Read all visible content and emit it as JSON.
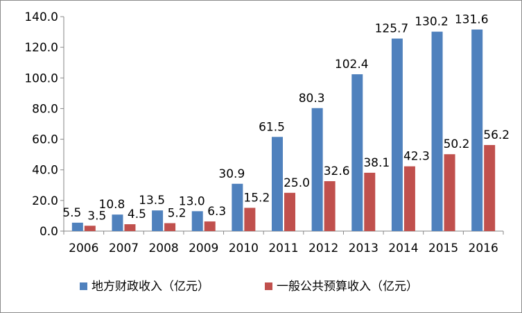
{
  "chart_data": {
    "type": "bar",
    "categories": [
      "2006",
      "2007",
      "2008",
      "2009",
      "2010",
      "2011",
      "2012",
      "2013",
      "2014",
      "2015",
      "2016"
    ],
    "series": [
      {
        "name": "地方财政收入（亿元）",
        "values": [
          5.5,
          10.8,
          13.5,
          13.0,
          30.9,
          61.5,
          80.3,
          102.4,
          125.7,
          130.2,
          131.6
        ],
        "labels": [
          "5.5",
          "10.8",
          "13.5",
          "13.0",
          "30.9",
          "61.5",
          "80.3",
          "102.4",
          "125.7",
          "130.2",
          "131.6"
        ],
        "color": "#4F81BD"
      },
      {
        "name": "一般公共预算收入（亿元）",
        "values": [
          3.5,
          4.5,
          5.2,
          6.3,
          15.2,
          25.0,
          32.6,
          38.1,
          42.3,
          50.2,
          56.2
        ],
        "labels": [
          "3.5",
          "4.5",
          "5.2",
          "6.3",
          "15.2",
          "25.0",
          "32.6",
          "38.1",
          "42.3",
          "50.2",
          "56.2"
        ],
        "color": "#C0504D"
      }
    ],
    "yticks": [
      "0.0",
      "20.0",
      "40.0",
      "60.0",
      "80.0",
      "100.0",
      "120.0",
      "140.0"
    ],
    "ylim": [
      0,
      140
    ],
    "grid": false,
    "legend": "bottom",
    "title": "",
    "xlabel": "",
    "ylabel": ""
  }
}
